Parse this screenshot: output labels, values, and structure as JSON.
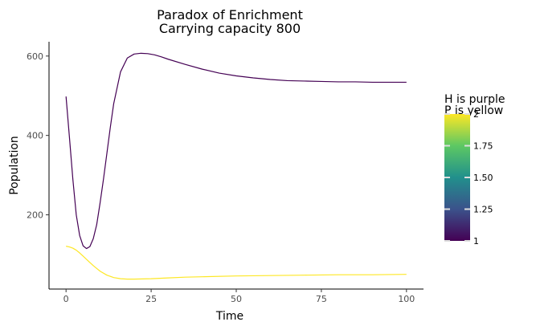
{
  "chart_data": {
    "type": "line",
    "title": "Paradox of Enrichment",
    "subtitle": "Carrying capacity 800",
    "xlabel": "Time",
    "ylabel": "Population",
    "xlim": [
      -5,
      105
    ],
    "ylim": [
      13,
      636
    ],
    "x_ticks": [
      0,
      25,
      50,
      75,
      100
    ],
    "y_ticks": [
      200,
      400,
      600
    ],
    "grid": false,
    "legend": {
      "title_lines": [
        "H is purple",
        "P is yellow"
      ],
      "type": "colorbar",
      "placement": "right",
      "range": [
        1,
        2
      ],
      "ticks": [
        1,
        1.25,
        1.5,
        1.75,
        2
      ],
      "tick_labels": [
        "1",
        "1.25",
        "1.50",
        "1.75",
        "2"
      ],
      "colors": [
        "#440154",
        "#3b528b",
        "#21908c",
        "#5dc863",
        "#fde725"
      ]
    },
    "series": [
      {
        "color": "#440154",
        "x": [
          0,
          1,
          2,
          3,
          4,
          5,
          6,
          7,
          8,
          9,
          10,
          11,
          12,
          13,
          14,
          16,
          18,
          20,
          22,
          24,
          26,
          28,
          30,
          35,
          40,
          45,
          50,
          55,
          60,
          65,
          70,
          75,
          80,
          85,
          90,
          95,
          100
        ],
        "y": [
          498,
          395,
          290,
          200,
          148,
          122,
          115,
          120,
          140,
          175,
          230,
          290,
          355,
          420,
          480,
          560,
          595,
          605,
          607,
          606,
          603,
          598,
          592,
          579,
          567,
          557,
          550,
          545,
          541,
          538,
          537,
          536,
          535,
          535,
          534,
          534,
          534
        ]
      },
      {
        "color": "#fde725",
        "x": [
          0,
          1,
          2,
          3,
          4,
          5,
          6,
          7,
          8,
          9,
          10,
          12,
          14,
          16,
          18,
          20,
          25,
          30,
          35,
          40,
          50,
          60,
          70,
          80,
          90,
          100
        ],
        "y": [
          121,
          119,
          116,
          111,
          104,
          96,
          88,
          80,
          72,
          65,
          58,
          48,
          42,
          39,
          38,
          38,
          39,
          41,
          43,
          44,
          46,
          47,
          48,
          49,
          49,
          50
        ]
      }
    ]
  }
}
